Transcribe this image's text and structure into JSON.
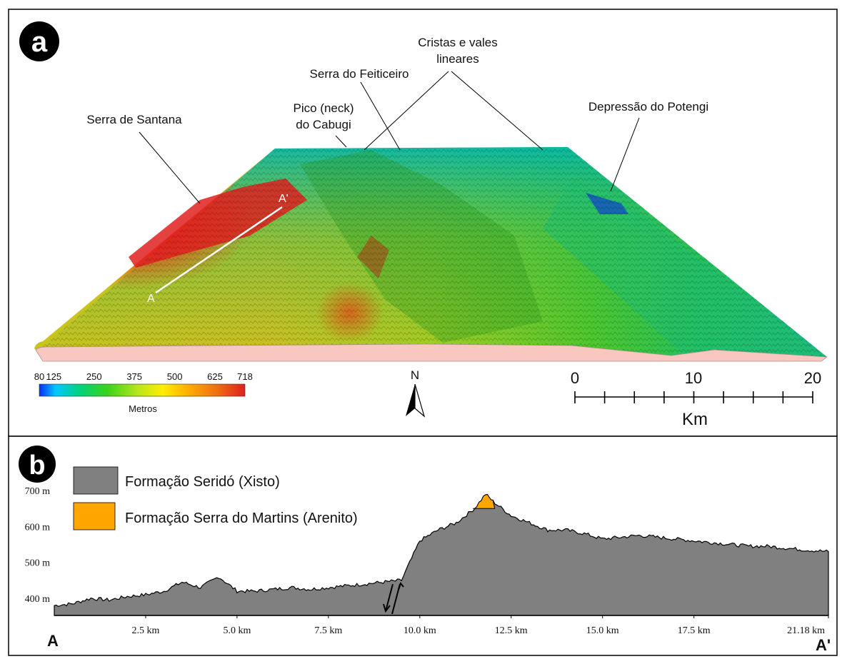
{
  "panel_a": {
    "letter": "a",
    "annotations": {
      "serra_santana": "Serra de Santana",
      "pico_line1": "Pico (neck)",
      "pico_line2": "do Cabugi",
      "serra_feiticeiro": "Serra do Feiticeiro",
      "cristas_line1": "Cristas e vales",
      "cristas_line2": "lineares",
      "depressao": "Depressão do Potengi",
      "profile_start": "A",
      "profile_end": "A'"
    },
    "elevation_legend": {
      "ticks": [
        "80",
        "125",
        "250",
        "375",
        "500",
        "625",
        "718"
      ],
      "unit": "Metros",
      "colors": [
        "#0a2cff",
        "#00c8ff",
        "#00d27a",
        "#39d21a",
        "#b8e61a",
        "#ffee00",
        "#ffb000",
        "#f07010",
        "#e02020"
      ]
    },
    "north_arrow": {
      "label": "N"
    },
    "scale_bar": {
      "ticks": [
        "0",
        "10",
        "20"
      ],
      "unit": "Km"
    }
  },
  "panel_b": {
    "letter": "b",
    "legend": [
      {
        "label": "Formação Seridó (Xisto)",
        "color": "#808080"
      },
      {
        "label": "Formação Serra do Martins (Arenito)",
        "color": "#ffa500"
      }
    ],
    "y_ticks": [
      "700 m",
      "600 m",
      "500 m",
      "400 m"
    ],
    "x_ticks": [
      "2.5 km",
      "5.0 km",
      "7.5 km",
      "10.0 km",
      "12.5 km",
      "15.0 km",
      "17.5 km",
      "21.18 km"
    ],
    "end_labels": {
      "start": "A",
      "end": "A'"
    },
    "profile": {
      "km": [
        0,
        0.5,
        1.0,
        1.5,
        2.0,
        2.5,
        3.0,
        3.5,
        4.0,
        4.5,
        5.0,
        5.5,
        6.0,
        6.5,
        7.0,
        7.5,
        8.0,
        8.5,
        9.0,
        9.5,
        10.0,
        10.5,
        11.0,
        11.5,
        11.8,
        12.0,
        12.5,
        13.0,
        13.5,
        14.0,
        14.5,
        15.0,
        15.5,
        16.0,
        16.5,
        17.0,
        17.5,
        18.0,
        18.5,
        19.0,
        19.5,
        20.0,
        20.5,
        21.18
      ],
      "elev": [
        380,
        385,
        400,
        395,
        405,
        410,
        420,
        445,
        430,
        460,
        420,
        420,
        425,
        430,
        425,
        430,
        435,
        440,
        445,
        450,
        560,
        590,
        610,
        650,
        690,
        670,
        630,
        610,
        590,
        590,
        580,
        565,
        570,
        575,
        570,
        565,
        560,
        555,
        550,
        545,
        545,
        540,
        535,
        530
      ]
    },
    "cap_range_km": [
      11.45,
      12.05
    ]
  }
}
